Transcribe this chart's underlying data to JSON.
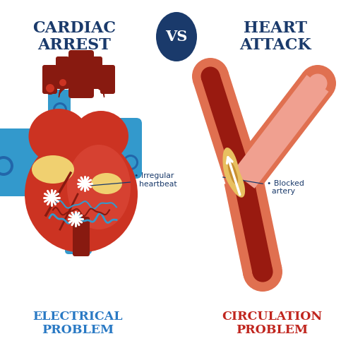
{
  "bg_color": "#ffffff",
  "title_left": "CARDIAC\nARREST",
  "title_right": "HEART\nATTACK",
  "vs_text": "VS",
  "bottom_left": "ELECTRICAL\nPROBLEM",
  "bottom_right": "CIRCULATION\nPROBLEM",
  "title_color": "#1a3a6b",
  "vs_bg": "#1a3a6b",
  "vs_color": "#ffffff",
  "electrical_color": "#2979c4",
  "circulation_color": "#c0251e",
  "label_color": "#1a3a6b",
  "heart_main": "#cc3322",
  "heart_light": "#e05040",
  "heart_dark": "#881a10",
  "heart_salmon": "#d4806a",
  "artery_outer": "#e07050",
  "artery_mid": "#cc5540",
  "artery_inner": "#991a10",
  "artery_light": "#f0a090",
  "blue_vessel": "#3399cc",
  "blue_dark": "#2266aa",
  "yellow_patch": "#f0d070",
  "yellow_dark": "#d4a030",
  "label_arrow_color": "#1a3a6b",
  "plaque_color": "#e8c060",
  "plaque_dark": "#c89030"
}
